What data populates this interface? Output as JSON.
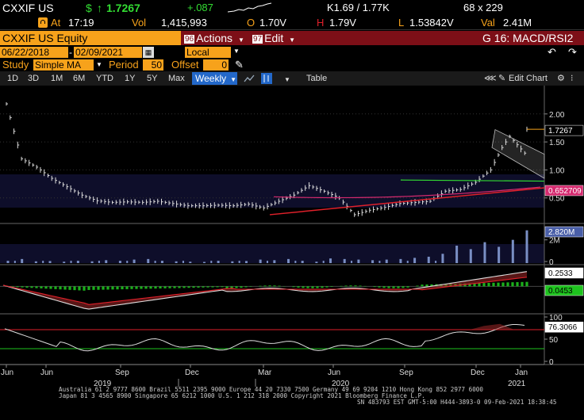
{
  "quote": {
    "ticker": "CXXIF US",
    "currency_symbol": "$",
    "arrow": "↑",
    "last_price": "1.7267",
    "change": "+.087",
    "bid_ask": "K1.69 / 1.77K",
    "size": "68 x 229",
    "at_label": "At",
    "time": "17:19",
    "vol_label": "Vol",
    "volume": "1,415,993",
    "open_label": "O",
    "open": "1.70V",
    "high_label": "H",
    "high": "1.79V",
    "low_label": "L",
    "low": "1.53842V",
    "val_label": "Val",
    "value": "2.41M"
  },
  "titlebar": {
    "security": "CXXIF US Equity",
    "actions_num": "96",
    "actions_label": "Actions",
    "edit_num": "97",
    "edit_label": "Edit",
    "function_title": "G 16: MACD/RSI2"
  },
  "range": {
    "start_date": "06/22/2018",
    "end_date": "02/09/2021",
    "currency": "Local CCY"
  },
  "study": {
    "study_label": "Study",
    "study_value": "Simple MA",
    "period_label": "Period",
    "period_value": "50",
    "offset_label": "Offset",
    "offset_value": "0"
  },
  "toolbar": {
    "periods": [
      "1D",
      "3D",
      "1M",
      "6M",
      "YTD",
      "1Y",
      "5Y",
      "Max"
    ],
    "frequency": "Weekly",
    "table_label": "Table",
    "edit_chart_label": "Edit Chart"
  },
  "axes": {
    "price_ticks": [
      "2.00",
      "1.50",
      "1.00",
      "0.50"
    ],
    "volume_ticks": [
      "2M",
      "0"
    ],
    "rsi_ticks": [
      "100",
      "50",
      "0"
    ],
    "x_month_labels": [
      "Jun",
      "Jun",
      "Sep",
      "Dec",
      "Mar",
      "Jun",
      "Sep",
      "Dec",
      "Jan"
    ],
    "x_year_labels": [
      "2019",
      "2020",
      "2021"
    ]
  },
  "badges": {
    "price": "1.7267",
    "ma": "0.652709",
    "volume": "2.820M",
    "macd_top": "0.2533",
    "macd_bottom": "0.0453",
    "rsi": "76.3066"
  },
  "colors": {
    "bloomberg_orange": "#f7a21b",
    "title_red": "#7d0f17",
    "highlight_blue": "#2368c9",
    "ma_line": "#d52a6f",
    "trend_red": "#e0202a",
    "trend_green": "#33dd33",
    "volume_bar": "#7a8fc4"
  },
  "footer": {
    "line1": "Australia 61 2 9777 8600 Brazil 5511 2395 9000 Europe 44 20 7330 7500 Germany 49 69 9204 1210 Hong Kong 852 2977 6000",
    "line2": "Japan 81 3 4565 8900       Singapore 65 6212 1000      U.S. 1 212 318 2000           Copyright 2021 Bloomberg Finance L.P.",
    "line3": "SN 483793 EST  GMT-5:00 H444-3893-0 09-Feb-2021 18:38:45"
  },
  "chart_data": {
    "type": "line",
    "title": "",
    "x_range": [
      "2018-06-22",
      "2021-02-09"
    ],
    "frequency": "weekly",
    "price": {
      "ylim": [
        0.1,
        2.45
      ],
      "series": [
        {
          "date": "2018-06-22",
          "close": 2.18
        },
        {
          "date": "2018-07-20",
          "close": 1.2
        },
        {
          "date": "2018-08-17",
          "close": 1.05
        },
        {
          "date": "2018-09-14",
          "close": 0.85
        },
        {
          "date": "2018-10-12",
          "close": 0.7
        },
        {
          "date": "2018-11-09",
          "close": 0.55
        },
        {
          "date": "2018-12-07",
          "close": 0.45
        },
        {
          "date": "2019-01-04",
          "close": 0.42
        },
        {
          "date": "2019-02-01",
          "close": 0.43
        },
        {
          "date": "2019-03-01",
          "close": 0.42
        },
        {
          "date": "2019-03-29",
          "close": 0.44
        },
        {
          "date": "2019-04-26",
          "close": 0.4
        },
        {
          "date": "2019-05-24",
          "close": 0.36
        },
        {
          "date": "2019-06-21",
          "close": 0.36
        },
        {
          "date": "2019-07-19",
          "close": 0.37
        },
        {
          "date": "2019-08-16",
          "close": 0.36
        },
        {
          "date": "2019-09-13",
          "close": 0.39
        },
        {
          "date": "2019-10-11",
          "close": 0.32
        },
        {
          "date": "2019-11-08",
          "close": 0.44
        },
        {
          "date": "2019-12-06",
          "close": 0.55
        },
        {
          "date": "2020-01-03",
          "close": 0.72
        },
        {
          "date": "2020-01-31",
          "close": 0.62
        },
        {
          "date": "2020-02-28",
          "close": 0.5
        },
        {
          "date": "2020-03-27",
          "close": 0.2
        },
        {
          "date": "2020-04-24",
          "close": 0.28
        },
        {
          "date": "2020-05-22",
          "close": 0.33
        },
        {
          "date": "2020-06-19",
          "close": 0.4
        },
        {
          "date": "2020-07-17",
          "close": 0.42
        },
        {
          "date": "2020-08-14",
          "close": 0.44
        },
        {
          "date": "2020-09-11",
          "close": 0.62
        },
        {
          "date": "2020-10-09",
          "close": 0.65
        },
        {
          "date": "2020-11-06",
          "close": 0.78
        },
        {
          "date": "2020-12-04",
          "close": 1.0
        },
        {
          "date": "2020-12-25",
          "close": 1.4
        },
        {
          "date": "2021-01-08",
          "close": 1.6
        },
        {
          "date": "2021-01-22",
          "close": 1.45
        },
        {
          "date": "2021-02-05",
          "close": 1.3
        },
        {
          "date": "2021-02-09",
          "close": 1.7267
        }
      ],
      "moving_average": {
        "name": "SMA(50)",
        "last": 0.652709
      },
      "price_ticks": [
        2.0,
        1.5,
        1.0,
        0.5
      ]
    },
    "volume": {
      "ylim": [
        0,
        3000000
      ],
      "values": [
        200000,
        350000,
        150000,
        180000,
        120000,
        200000,
        150000,
        250000,
        200000,
        300000,
        350000,
        200000,
        150000,
        120000,
        100000,
        200000,
        150000,
        180000,
        300000,
        250000,
        350000,
        200000,
        120000,
        400000,
        350000,
        300000,
        250000,
        300000,
        350000,
        450000,
        550000,
        800000,
        1500000,
        1200000,
        1800000,
        1400000,
        2000000,
        2820000
      ],
      "last": "2.820M"
    },
    "macd": {
      "ylim": [
        -0.45,
        0.35
      ],
      "macd_last": 0.2533,
      "signal_last": 0.0453
    },
    "rsi": {
      "ylim": [
        0,
        100
      ],
      "upper_band": 70,
      "lower_band": 30,
      "last": 76.3066
    }
  }
}
